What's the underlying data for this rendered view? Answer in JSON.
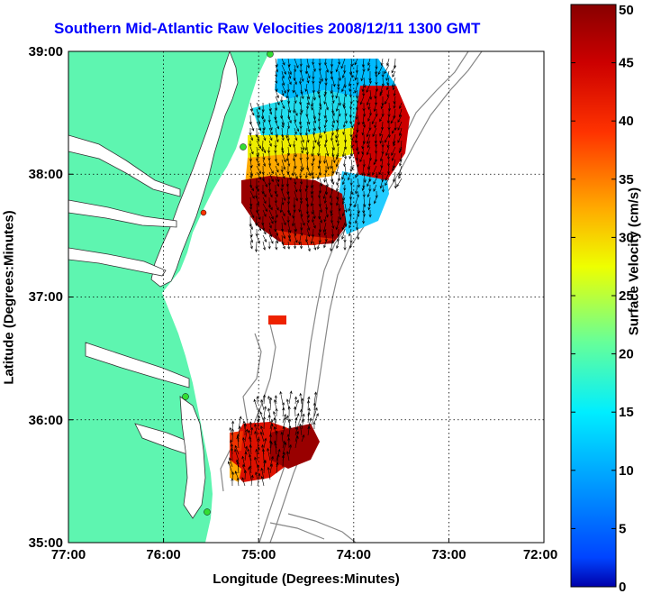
{
  "title": "Southern Mid-Atlantic Raw Velocities 2008/12/11 1300 GMT",
  "xlabel": "Longitude (Degrees:Minutes)",
  "ylabel": "Latitude (Degrees:Minutes)",
  "x_ticks": [
    "77:00",
    "76:00",
    "75:00",
    "74:00",
    "73:00",
    "72:00"
  ],
  "y_ticks": [
    "39:00",
    "38:00",
    "37:00",
    "36:00",
    "35:00"
  ],
  "colorbar": {
    "label": "Surface Velocity (cm/s)",
    "ticks": [
      "0",
      "5",
      "10",
      "15",
      "20",
      "25",
      "30",
      "35",
      "40",
      "45",
      "50"
    ],
    "range": [
      0,
      50
    ]
  },
  "colors": {
    "land": "#5ef5b0",
    "title": "#0000ff",
    "station": "#33dd33"
  }
}
